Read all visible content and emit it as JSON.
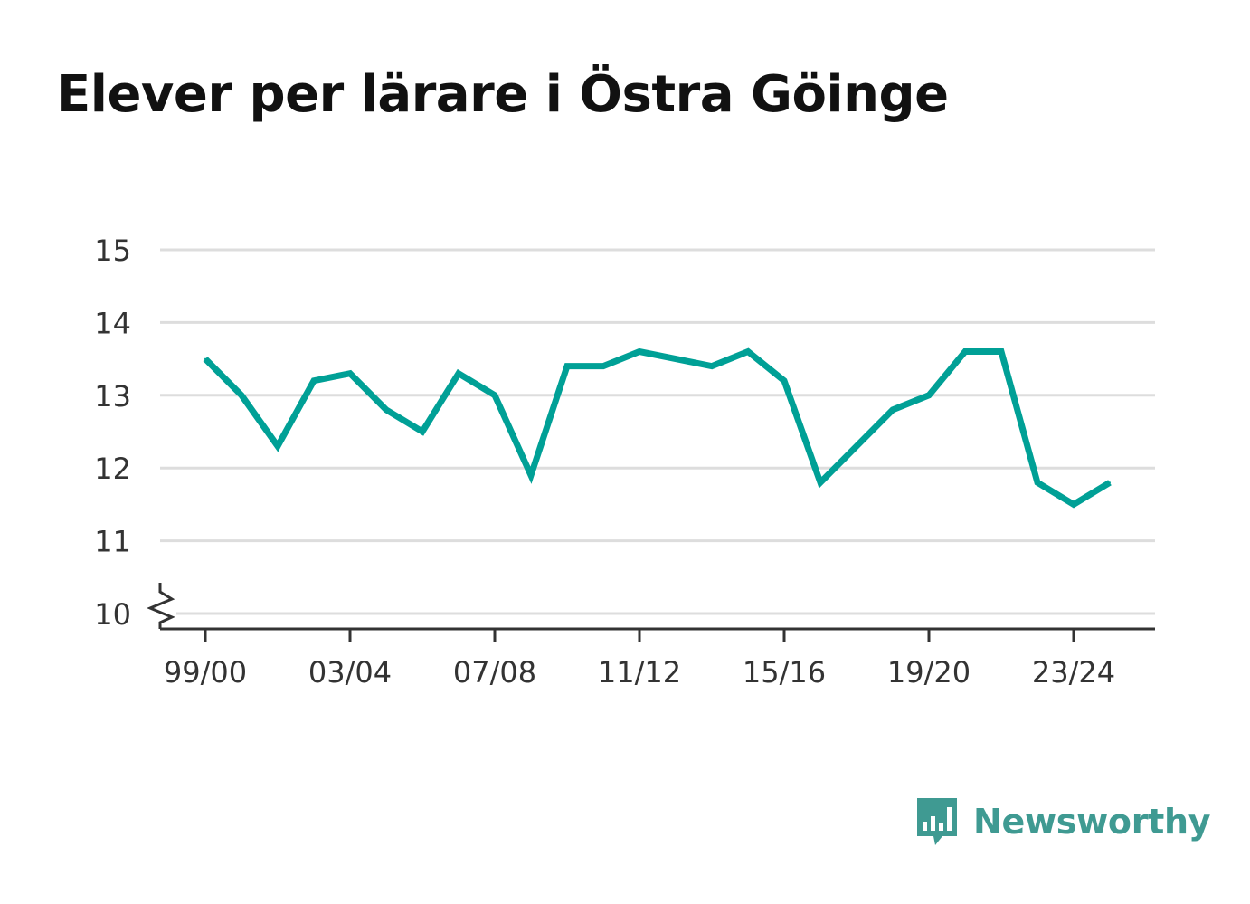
{
  "chart_data": {
    "type": "line",
    "title": "Elever per lärare i Östra Göinge",
    "xlabel": "",
    "ylabel": "",
    "x": [
      "99/00",
      "00/01",
      "01/02",
      "02/03",
      "03/04",
      "04/05",
      "05/06",
      "06/07",
      "07/08",
      "08/09",
      "09/10",
      "10/11",
      "11/12",
      "12/13",
      "13/14",
      "14/15",
      "15/16",
      "16/17",
      "17/18",
      "18/19",
      "19/20",
      "20/21",
      "21/22",
      "22/23",
      "23/24",
      "24/25"
    ],
    "x_tick_labels": [
      "99/00",
      "03/04",
      "07/08",
      "11/12",
      "15/16",
      "19/20",
      "23/24"
    ],
    "y_tick_labels": [
      "10",
      "11",
      "12",
      "13",
      "14",
      "15"
    ],
    "ylim": [
      10,
      15
    ],
    "y_axis_break": true,
    "grid": true,
    "series": [
      {
        "color": "#00a096",
        "values": [
          13.5,
          13.0,
          12.3,
          13.2,
          13.3,
          12.8,
          12.5,
          13.3,
          13.0,
          11.9,
          13.4,
          13.4,
          13.6,
          13.5,
          13.4,
          13.6,
          13.2,
          11.8,
          12.3,
          12.8,
          13.0,
          13.6,
          13.6,
          11.8,
          11.5,
          11.8
        ]
      }
    ]
  },
  "colors": {
    "line": "#00a096",
    "grid": "#dddddd",
    "axis": "#333333",
    "brand": "#3f9a92"
  },
  "brand": {
    "name": "Newsworthy",
    "icon": "bar-chart-speech-bubble-icon"
  }
}
